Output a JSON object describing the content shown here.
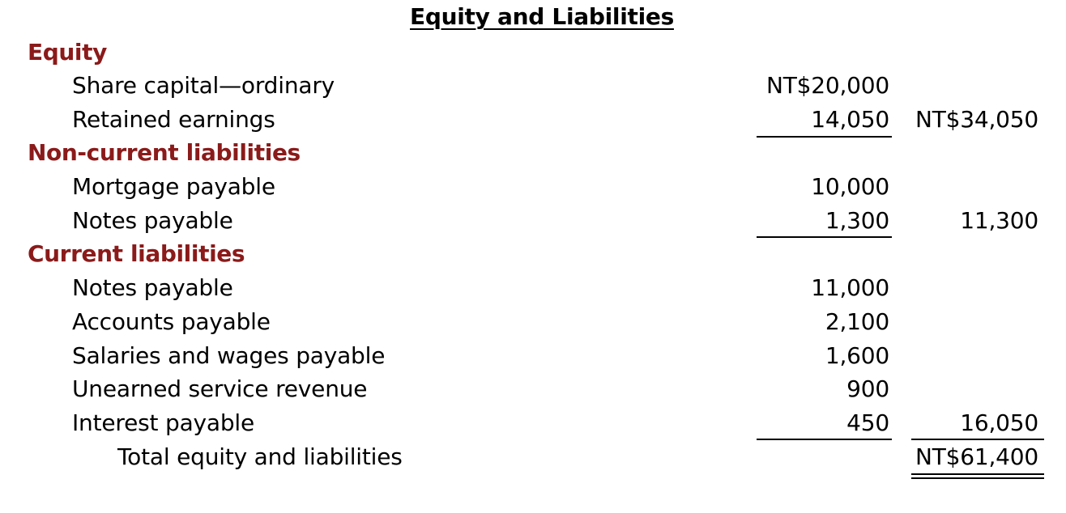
{
  "title": "Equity and Liabilities",
  "sections": {
    "equity": {
      "heading": "Equity",
      "rows": [
        {
          "label": "Share capital—ordinary",
          "amount": "NT$20,000"
        },
        {
          "label": "Retained earnings",
          "amount": "14,050",
          "subtotal": "NT$34,050"
        }
      ]
    },
    "noncurrent": {
      "heading": "Non-current liabilities",
      "rows": [
        {
          "label": "Mortgage payable",
          "amount": "10,000"
        },
        {
          "label": "Notes payable",
          "amount": "1,300",
          "subtotal": "11,300"
        }
      ]
    },
    "current": {
      "heading": "Current liabilities",
      "rows": [
        {
          "label": "Notes payable",
          "amount": "11,000"
        },
        {
          "label": "Accounts payable",
          "amount": "2,100"
        },
        {
          "label": "Salaries and wages payable",
          "amount": "1,600"
        },
        {
          "label": "Unearned service revenue",
          "amount": "900"
        },
        {
          "label": "Interest payable",
          "amount": "450",
          "subtotal": "16,050"
        }
      ]
    }
  },
  "total": {
    "label": "Total equity and liabilities",
    "amount": "NT$61,400"
  },
  "colors": {
    "heading": "#8B1A1A",
    "text": "#000000",
    "background": "#ffffff"
  }
}
